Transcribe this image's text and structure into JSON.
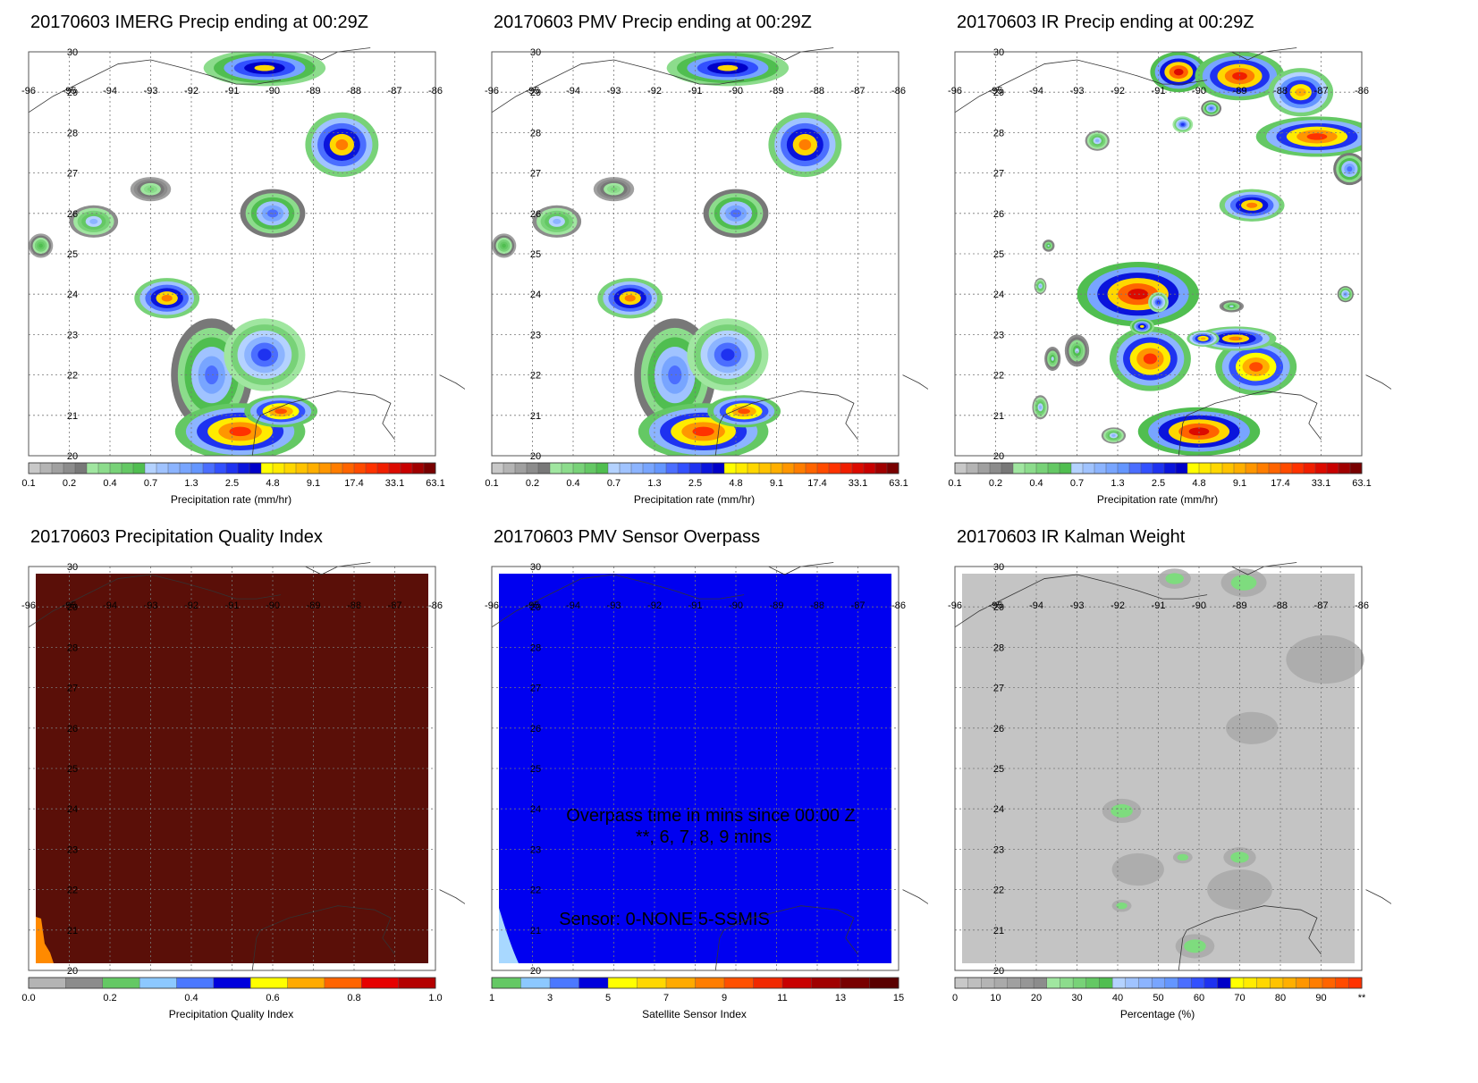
{
  "panels": [
    {
      "id": "imerg",
      "title": "20170603 IMERG Precip ending at 00:29Z",
      "field": "precip_imerg",
      "colorbar": "precip"
    },
    {
      "id": "pmv",
      "title": "20170603 PMV Precip ending at 00:29Z",
      "field": "precip_pmv",
      "colorbar": "precip"
    },
    {
      "id": "ir",
      "title": "20170603 IR Precip ending at 00:29Z",
      "field": "precip_ir",
      "colorbar": "precip"
    },
    {
      "id": "pqi",
      "title": "20170603 Precipitation Quality Index",
      "field": "quality",
      "colorbar": "quality"
    },
    {
      "id": "sensor",
      "title": "20170603 PMV Sensor Overpass",
      "field": "sensor",
      "colorbar": "sensor",
      "overlay": [
        "Overpass time in mins since 00:00 Z",
        "**, 6, 7, 8, 9 mins",
        "Sensor:   0-NONE  5-SSMIS"
      ]
    },
    {
      "id": "kalman",
      "title": "20170603 IR Kalman Weight",
      "field": "kalman",
      "colorbar": "percent"
    }
  ],
  "axes": {
    "lon_labels": [
      "-96",
      "-95",
      "-94",
      "-93",
      "-92",
      "-91",
      "-90",
      "-89",
      "-88",
      "-87",
      "-86"
    ],
    "lat_labels": [
      "30",
      "29",
      "28",
      "27",
      "26",
      "25",
      "24",
      "23",
      "22",
      "21",
      "20"
    ]
  },
  "colorbars": {
    "precip": {
      "title": "Precipitation rate (mm/hr)",
      "ticks": [
        "0.1",
        "0.2",
        "0.4",
        "0.7",
        "1.3",
        "2.5",
        "4.8",
        "9.1",
        "17.4",
        "33.1",
        "63.1"
      ],
      "colors": [
        "#c8c8c8",
        "#b4b4b4",
        "#a0a0a0",
        "#8c8c8c",
        "#787878",
        "#a0e6a0",
        "#8cdc8c",
        "#78d278",
        "#64c864",
        "#50be50",
        "#b4d2ff",
        "#a0c3ff",
        "#8cb4ff",
        "#78a5ff",
        "#6496ff",
        "#4b6eff",
        "#3250ff",
        "#1e32f0",
        "#0a14dc",
        "#0000c8",
        "#ffff00",
        "#ffeb00",
        "#ffd700",
        "#ffc300",
        "#ffaf00",
        "#ff9600",
        "#ff7d00",
        "#ff6400",
        "#ff4b00",
        "#ff3200",
        "#f01e00",
        "#dc0a00",
        "#c80000",
        "#a00000",
        "#780000"
      ]
    },
    "quality": {
      "title": "Precipitation Quality Index",
      "ticks": [
        "0.0",
        "0.2",
        "0.4",
        "0.6",
        "0.8",
        "1.0"
      ],
      "colors": [
        "#b4b4b4",
        "#8c8c8c",
        "#64c864",
        "#8cc8ff",
        "#4b78ff",
        "#0000dc",
        "#ffff00",
        "#ffaa00",
        "#ff6400",
        "#e60000",
        "#b40000"
      ]
    },
    "sensor": {
      "title": "Satellite Sensor Index",
      "ticks": [
        "1",
        "3",
        "5",
        "7",
        "9",
        "11",
        "13",
        "15"
      ],
      "colors": [
        "#64c864",
        "#8cc8ff",
        "#4b78ff",
        "#0000dc",
        "#ffff00",
        "#ffd700",
        "#ffaa00",
        "#ff7d00",
        "#ff5000",
        "#f02800",
        "#c80000",
        "#a00000",
        "#780000",
        "#5a0000"
      ]
    },
    "percent": {
      "title": "Percentage (%)",
      "ticks": [
        "0",
        "10",
        "20",
        "30",
        "40",
        "50",
        "60",
        "70",
        "80",
        "90",
        "**"
      ],
      "colors": [
        "#c8c8c8",
        "#bebebe",
        "#b4b4b4",
        "#aaaaaa",
        "#a0a0a0",
        "#969696",
        "#8c8c8c",
        "#a0e6a0",
        "#8cdc8c",
        "#78d278",
        "#64c864",
        "#50be50",
        "#b4d2ff",
        "#a0c3ff",
        "#8cb4ff",
        "#78a5ff",
        "#6496ff",
        "#4b6eff",
        "#3250ff",
        "#1e32f0",
        "#0000c8",
        "#ffff00",
        "#ffeb00",
        "#ffd700",
        "#ffc300",
        "#ffaf00",
        "#ff9600",
        "#ff7d00",
        "#ff6400",
        "#ff4b00",
        "#ff3200"
      ]
    }
  }
}
